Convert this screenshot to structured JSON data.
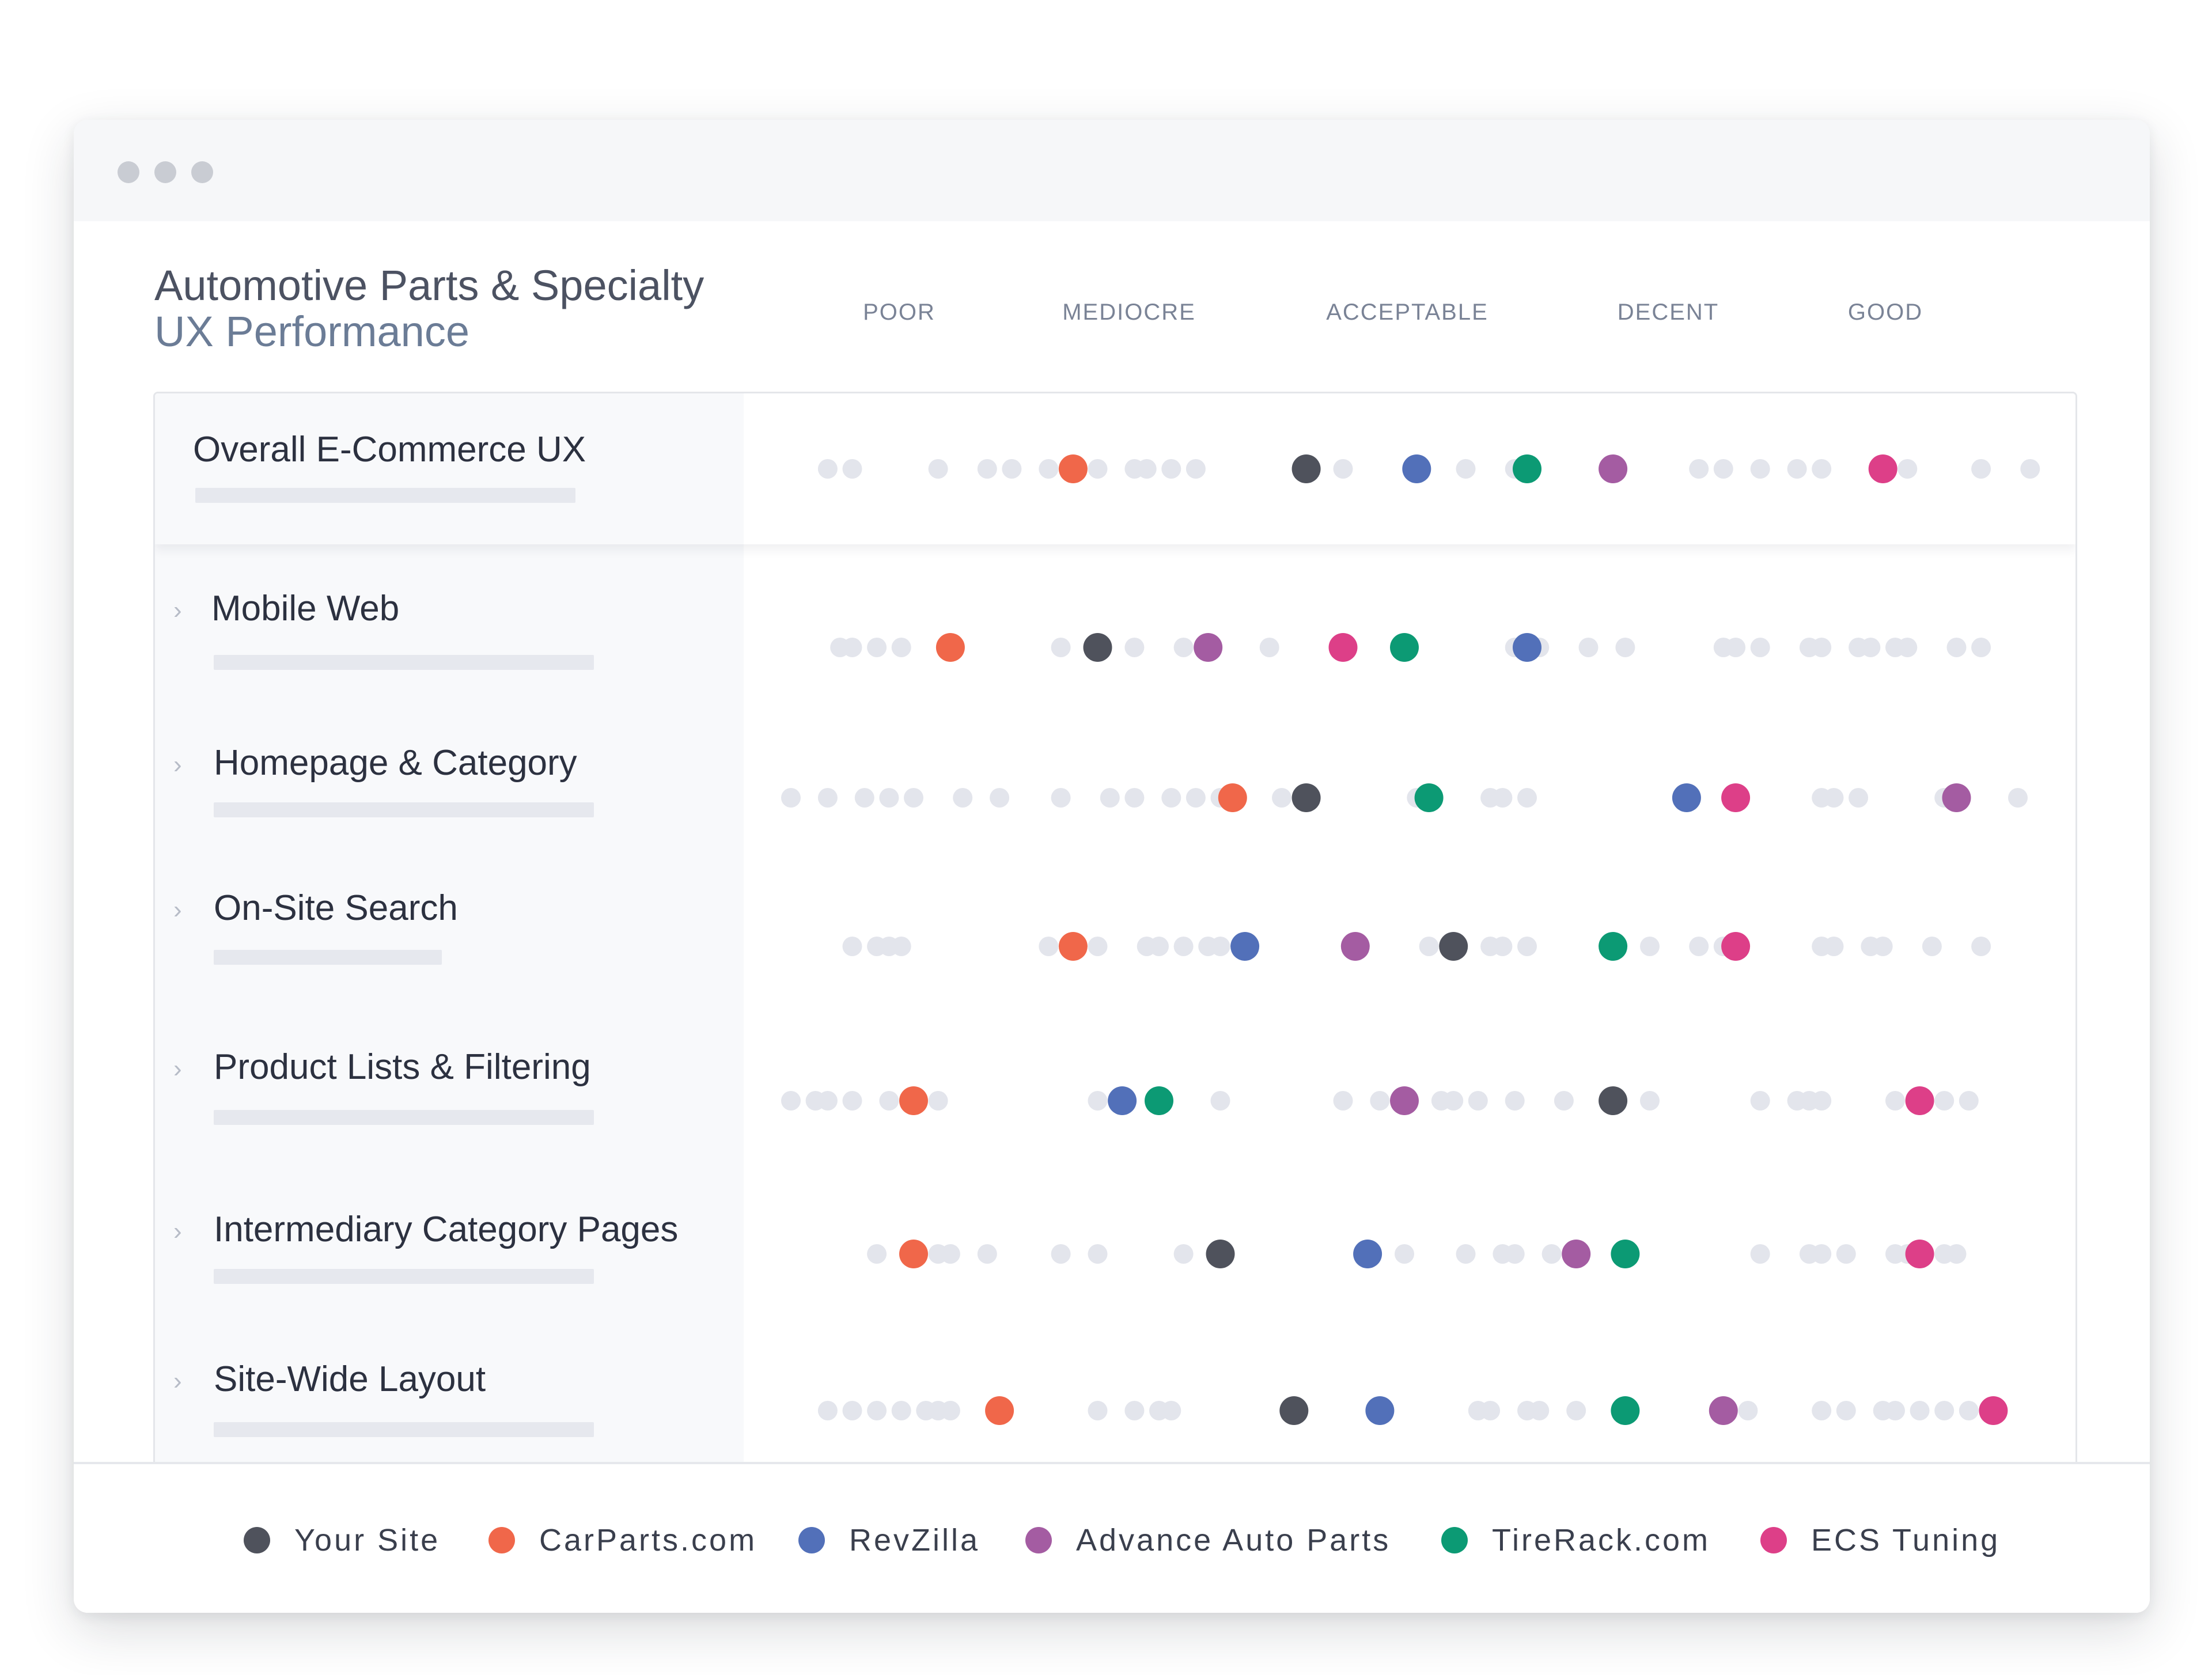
{
  "header": {
    "title": "Automotive Parts & Specialty",
    "subtitle": "UX Performance"
  },
  "scale_labels": [
    "POOR",
    "MEDIOCRE",
    "ACCEPTABLE",
    "DECENT",
    "GOOD"
  ],
  "rows": [
    {
      "label": "Overall E-Commerce UX",
      "expandable": false
    },
    {
      "label": "Mobile Web",
      "expandable": true
    },
    {
      "label": "Homepage & Category",
      "expandable": true
    },
    {
      "label": "On-Site Search",
      "expandable": true
    },
    {
      "label": "Product Lists & Filtering",
      "expandable": true
    },
    {
      "label": "Intermediary Category Pages",
      "expandable": true
    },
    {
      "label": "Site-Wide Layout",
      "expandable": true
    }
  ],
  "legend": [
    {
      "name": "Your Site",
      "color": "#4f525c"
    },
    {
      "name": "CarParts.com",
      "color": "#f0674a"
    },
    {
      "name": "RevZilla",
      "color": "#5270b9"
    },
    {
      "name": "Advance Auto Parts",
      "color": "#a45ca2"
    },
    {
      "name": "TireRack.com",
      "color": "#0c9a74"
    },
    {
      "name": "ECS Tuning",
      "color": "#dd3f88"
    }
  ],
  "chart_data": {
    "type": "scatter",
    "title": "",
    "x_scale": {
      "min": 0,
      "max": 1,
      "categories": [
        "POOR",
        "MEDIOCRE",
        "ACCEPTABLE",
        "DECENT",
        "GOOD"
      ]
    },
    "categories": [
      "Overall E-Commerce UX",
      "Mobile Web",
      "Homepage & Category",
      "On-Site Search",
      "Product Lists & Filtering",
      "Intermediary Category Pages",
      "Site-Wide Layout"
    ],
    "series": [
      {
        "name": "Your Site",
        "color": "#4f525c",
        "values": [
          0.42,
          0.25,
          0.42,
          0.54,
          0.67,
          0.35,
          0.41
        ]
      },
      {
        "name": "CarParts.com",
        "color": "#f0674a",
        "values": [
          0.23,
          0.13,
          0.36,
          0.23,
          0.1,
          0.1,
          0.17
        ]
      },
      {
        "name": "RevZilla",
        "color": "#5270b9",
        "values": [
          0.51,
          0.6,
          0.73,
          0.37,
          0.27,
          0.47,
          0.48
        ]
      },
      {
        "name": "Advance Auto Parts",
        "color": "#a45ca2",
        "values": [
          0.67,
          0.34,
          0.95,
          0.46,
          0.5,
          0.64,
          0.76
        ]
      },
      {
        "name": "TireRack.com",
        "color": "#0c9a74",
        "values": [
          0.6,
          0.5,
          0.52,
          0.67,
          0.3,
          0.68,
          0.68
        ]
      },
      {
        "name": "ECS Tuning",
        "color": "#dd3f88",
        "values": [
          0.89,
          0.45,
          0.77,
          0.77,
          0.92,
          0.92,
          0.98
        ]
      }
    ],
    "background_points": [
      [
        0.03,
        0.05,
        0.12,
        0.16,
        0.18,
        0.21,
        0.25,
        0.28,
        0.29,
        0.31,
        0.33,
        0.45,
        0.55,
        0.59,
        0.74,
        0.76,
        0.79,
        0.82,
        0.84,
        0.91,
        0.97,
        1.01
      ],
      [
        0.04,
        0.05,
        0.07,
        0.09,
        0.22,
        0.28,
        0.32,
        0.39,
        0.59,
        0.61,
        0.65,
        0.68,
        0.76,
        0.77,
        0.79,
        0.83,
        0.84,
        0.87,
        0.88,
        0.9,
        0.91,
        0.95,
        0.97
      ],
      [
        0.0,
        0.03,
        0.06,
        0.08,
        0.1,
        0.14,
        0.17,
        0.22,
        0.26,
        0.28,
        0.31,
        0.33,
        0.35,
        0.4,
        0.51,
        0.57,
        0.58,
        0.6,
        0.84,
        0.85,
        0.87,
        0.94,
        1.0
      ],
      [
        0.05,
        0.07,
        0.08,
        0.09,
        0.21,
        0.25,
        0.29,
        0.3,
        0.32,
        0.34,
        0.35,
        0.52,
        0.57,
        0.58,
        0.6,
        0.7,
        0.74,
        0.76,
        0.84,
        0.85,
        0.88,
        0.89,
        0.93,
        0.97
      ],
      [
        0.0,
        0.02,
        0.03,
        0.05,
        0.08,
        0.12,
        0.25,
        0.35,
        0.45,
        0.48,
        0.53,
        0.54,
        0.56,
        0.59,
        0.63,
        0.7,
        0.79,
        0.82,
        0.83,
        0.84,
        0.9,
        0.94,
        0.96
      ],
      [
        0.07,
        0.12,
        0.13,
        0.16,
        0.22,
        0.25,
        0.32,
        0.5,
        0.55,
        0.58,
        0.59,
        0.62,
        0.79,
        0.83,
        0.84,
        0.86,
        0.9,
        0.91,
        0.94,
        0.95
      ],
      [
        0.03,
        0.05,
        0.07,
        0.09,
        0.11,
        0.12,
        0.13,
        0.25,
        0.28,
        0.3,
        0.31,
        0.56,
        0.57,
        0.6,
        0.61,
        0.64,
        0.78,
        0.84,
        0.86,
        0.89,
        0.9,
        0.92,
        0.94,
        0.96
      ]
    ]
  }
}
